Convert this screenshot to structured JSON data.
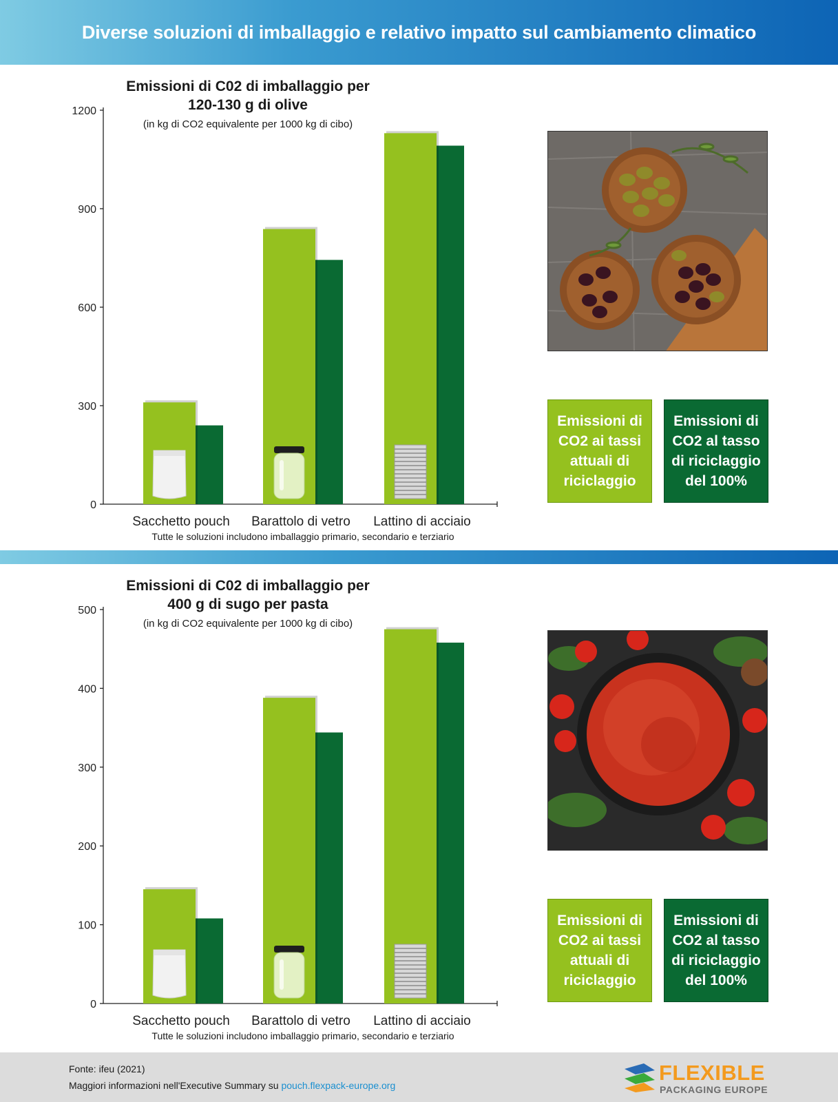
{
  "header": {
    "title": "Diverse soluzioni di imballaggio e relativo impatto sul cambiamento climatico"
  },
  "colors": {
    "current_rate": "#95c11f",
    "full_recycling": "#0a6a33",
    "banner_start": "#7fcbe3",
    "banner_end": "#0d64b5"
  },
  "panels": [
    {
      "title_line1": "Emissioni di C02 di imballaggio per",
      "title_line2": "120-130 g di olive",
      "subtitle": "(in kg di CO2 equivalente per 1000 kg di cibo)",
      "footnote": "Tutte le soluzioni includono imballaggio primario, secondario e terziario",
      "photo_icon": "olives-photo",
      "legend": {
        "current": "Emissioni di CO2 ai tassi attuali di riciclaggio",
        "full": "Emissioni di CO2 al tasso di riciclaggio del 100%"
      }
    },
    {
      "title_line1": "Emissioni di C02 di imballaggio per",
      "title_line2": "400 g di sugo per pasta",
      "subtitle": "(in kg di CO2 equivalente per 1000 kg di cibo)",
      "footnote": "Tutte le soluzioni includono imballaggio primario, secondario e terziario",
      "photo_icon": "tomato-sauce-photo",
      "legend": {
        "current": "Emissioni di CO2 ai tassi attuali di riciclaggio",
        "full": "Emissioni di CO2 al tasso di riciclaggio del 100%"
      }
    }
  ],
  "chart_data": [
    {
      "type": "bar",
      "title": "Emissioni di C02 di imballaggio per 120-130 g di olive",
      "subtitle": "(in kg di CO2 equivalente per 1000 kg di cibo)",
      "categories": [
        "Sacchetto pouch",
        "Barattolo di vetro",
        "Lattino di acciaio"
      ],
      "category_icons": [
        "pouch-icon",
        "glass-jar-icon",
        "steel-can-icon"
      ],
      "series": [
        {
          "name": "Emissioni di CO2 ai tassi attuali di riciclaggio",
          "values": [
            310,
            838,
            1130
          ]
        },
        {
          "name": "Emissioni di CO2 al tasso di riciclaggio del 100%",
          "values": [
            240,
            744,
            1092
          ]
        }
      ],
      "yticks": [
        0,
        300,
        600,
        900,
        1200
      ],
      "ylim": [
        0,
        1200
      ],
      "grid": false,
      "legend": "right"
    },
    {
      "type": "bar",
      "title": "Emissioni di C02 di imballaggio per 400 g di sugo per pasta",
      "subtitle": "(in kg di CO2 equivalente per 1000 kg di cibo)",
      "categories": [
        "Sacchetto pouch",
        "Barattolo di vetro",
        "Lattino di acciaio"
      ],
      "category_icons": [
        "pouch-icon",
        "glass-jar-icon",
        "steel-can-icon"
      ],
      "series": [
        {
          "name": "Emissioni di CO2 ai tassi attuali di riciclaggio",
          "values": [
            145,
            388,
            475
          ]
        },
        {
          "name": "Emissioni di CO2 al tasso di riciclaggio del 100%",
          "values": [
            108,
            344,
            458
          ]
        }
      ],
      "yticks": [
        0,
        100,
        200,
        300,
        400,
        500
      ],
      "ylim": [
        0,
        500
      ],
      "grid": false,
      "legend": "right"
    }
  ],
  "footer": {
    "source": "Fonte: ifeu (2021)",
    "more_prefix": "Maggiori informazioni nell'Executive Summary su ",
    "more_link": "pouch.flexpack-europe.org",
    "logo_line1": "FLEXIBLE",
    "logo_line2": "PACKAGING EUROPE"
  }
}
